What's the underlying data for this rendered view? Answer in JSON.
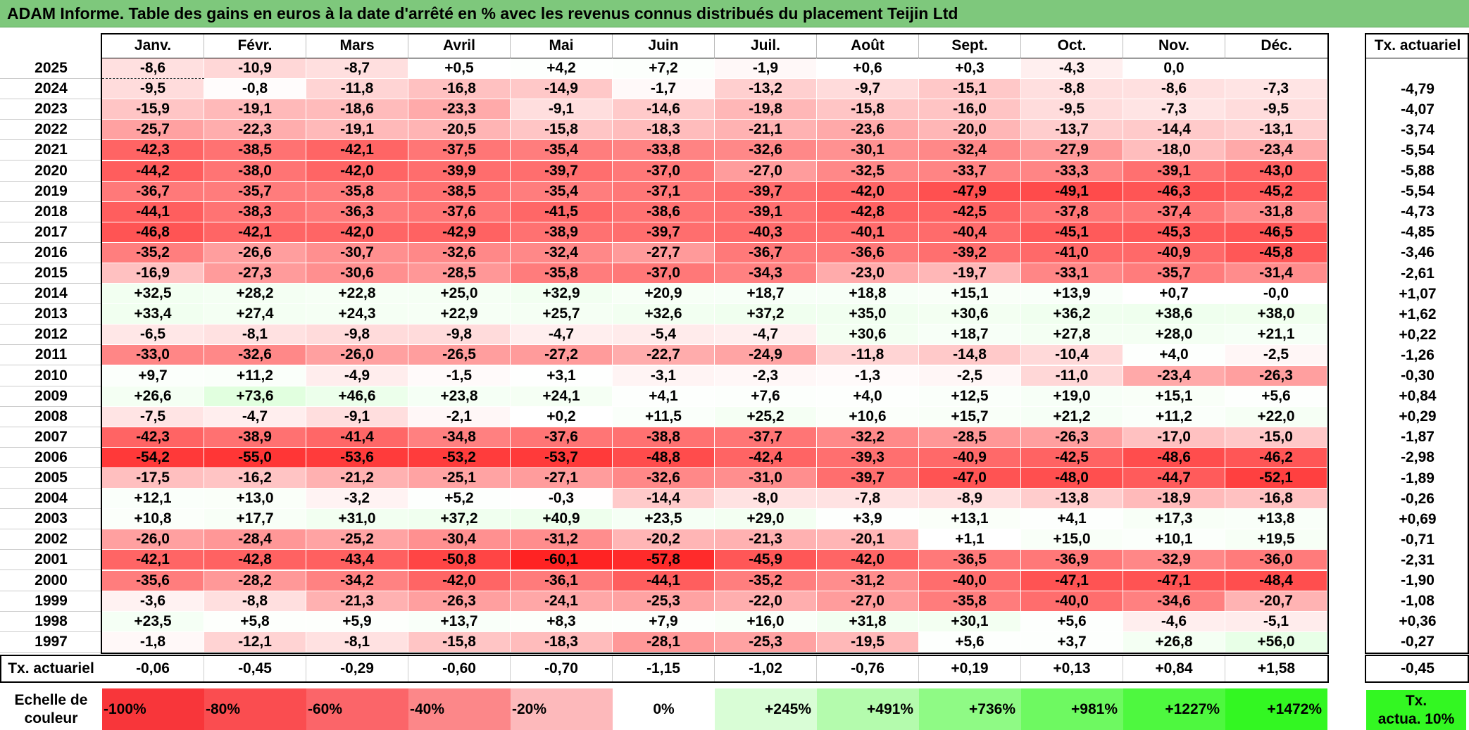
{
  "title": "ADAM Informe. Table des gains en euros à la date d'arrêté en % avec les revenus connus distribués du placement Teijin Ltd",
  "months": [
    "Janv.",
    "Févr.",
    "Mars",
    "Avril",
    "Mai",
    "Juin",
    "Juil.",
    "Août",
    "Sept.",
    "Oct.",
    "Nov.",
    "Déc."
  ],
  "rate_header": "Tx. actuariel",
  "rows": [
    {
      "year": "2025",
      "values": [
        "-8,6",
        "-10,9",
        "-8,7",
        "+0,5",
        "+4,2",
        "+7,2",
        "-1,9",
        "+0,6",
        "+0,3",
        "-4,3",
        "0,0",
        ""
      ],
      "rate": ""
    },
    {
      "year": "2024",
      "values": [
        "-9,5",
        "-0,8",
        "-11,8",
        "-16,8",
        "-14,9",
        "-1,7",
        "-13,2",
        "-9,7",
        "-15,1",
        "-8,8",
        "-8,6",
        "-7,3"
      ],
      "rate": "-4,79"
    },
    {
      "year": "2023",
      "values": [
        "-15,9",
        "-19,1",
        "-18,6",
        "-23,3",
        "-9,1",
        "-14,6",
        "-19,8",
        "-15,8",
        "-16,0",
        "-9,5",
        "-7,3",
        "-9,5"
      ],
      "rate": "-4,07"
    },
    {
      "year": "2022",
      "values": [
        "-25,7",
        "-22,3",
        "-19,1",
        "-20,5",
        "-15,8",
        "-18,3",
        "-21,1",
        "-23,6",
        "-20,0",
        "-13,7",
        "-14,4",
        "-13,1"
      ],
      "rate": "-3,74"
    },
    {
      "year": "2021",
      "values": [
        "-42,3",
        "-38,5",
        "-42,1",
        "-37,5",
        "-35,4",
        "-33,8",
        "-32,6",
        "-30,1",
        "-32,4",
        "-27,9",
        "-18,0",
        "-23,4"
      ],
      "rate": "-5,54"
    },
    {
      "year": "2020",
      "values": [
        "-44,2",
        "-38,0",
        "-42,0",
        "-39,9",
        "-39,7",
        "-37,0",
        "-27,0",
        "-32,5",
        "-33,7",
        "-33,3",
        "-39,1",
        "-43,0"
      ],
      "rate": "-5,88"
    },
    {
      "year": "2019",
      "values": [
        "-36,7",
        "-35,7",
        "-35,8",
        "-38,5",
        "-35,4",
        "-37,1",
        "-39,7",
        "-42,0",
        "-47,9",
        "-49,1",
        "-46,3",
        "-45,2"
      ],
      "rate": "-5,54"
    },
    {
      "year": "2018",
      "values": [
        "-44,1",
        "-38,3",
        "-36,3",
        "-37,6",
        "-41,5",
        "-38,6",
        "-39,1",
        "-42,8",
        "-42,5",
        "-37,8",
        "-37,4",
        "-31,8"
      ],
      "rate": "-4,73"
    },
    {
      "year": "2017",
      "values": [
        "-46,8",
        "-42,1",
        "-42,0",
        "-42,9",
        "-38,9",
        "-39,7",
        "-40,3",
        "-40,1",
        "-40,4",
        "-45,1",
        "-45,3",
        "-46,5"
      ],
      "rate": "-4,85"
    },
    {
      "year": "2016",
      "values": [
        "-35,2",
        "-26,6",
        "-30,7",
        "-32,6",
        "-32,4",
        "-27,7",
        "-36,7",
        "-36,6",
        "-39,2",
        "-41,0",
        "-40,9",
        "-45,8"
      ],
      "rate": "-3,46"
    },
    {
      "year": "2015",
      "values": [
        "-16,9",
        "-27,3",
        "-30,6",
        "-28,5",
        "-35,8",
        "-37,0",
        "-34,3",
        "-23,0",
        "-19,7",
        "-33,1",
        "-35,7",
        "-31,4"
      ],
      "rate": "-2,61"
    },
    {
      "year": "2014",
      "values": [
        "+32,5",
        "+28,2",
        "+22,8",
        "+25,0",
        "+32,9",
        "+20,9",
        "+18,7",
        "+18,8",
        "+15,1",
        "+13,9",
        "+0,7",
        "-0,0"
      ],
      "rate": "+1,07"
    },
    {
      "year": "2013",
      "values": [
        "+33,4",
        "+27,4",
        "+24,3",
        "+22,9",
        "+25,7",
        "+32,6",
        "+37,2",
        "+35,0",
        "+30,6",
        "+36,2",
        "+38,6",
        "+38,0"
      ],
      "rate": "+1,62"
    },
    {
      "year": "2012",
      "values": [
        "-6,5",
        "-8,1",
        "-9,8",
        "-9,8",
        "-4,7",
        "-5,4",
        "-4,7",
        "+30,6",
        "+18,7",
        "+27,8",
        "+28,0",
        "+21,1"
      ],
      "rate": "+0,22"
    },
    {
      "year": "2011",
      "values": [
        "-33,0",
        "-32,6",
        "-26,0",
        "-26,5",
        "-27,2",
        "-22,7",
        "-24,9",
        "-11,8",
        "-14,8",
        "-10,4",
        "+4,0",
        "-2,5"
      ],
      "rate": "-1,26"
    },
    {
      "year": "2010",
      "values": [
        "+9,7",
        "+11,2",
        "-4,9",
        "-1,5",
        "+3,1",
        "-3,1",
        "-2,3",
        "-1,3",
        "-2,5",
        "-11,0",
        "-23,4",
        "-26,3"
      ],
      "rate": "-0,30"
    },
    {
      "year": "2009",
      "values": [
        "+26,6",
        "+73,6",
        "+46,6",
        "+23,8",
        "+24,1",
        "+4,1",
        "+7,6",
        "+4,0",
        "+12,5",
        "+19,0",
        "+15,1",
        "+5,6"
      ],
      "rate": "+0,84"
    },
    {
      "year": "2008",
      "values": [
        "-7,5",
        "-4,7",
        "-9,1",
        "-2,1",
        "+0,2",
        "+11,5",
        "+25,2",
        "+10,6",
        "+15,7",
        "+21,2",
        "+11,2",
        "+22,0"
      ],
      "rate": "+0,29"
    },
    {
      "year": "2007",
      "values": [
        "-42,3",
        "-38,9",
        "-41,4",
        "-34,8",
        "-37,6",
        "-38,8",
        "-37,7",
        "-32,2",
        "-28,5",
        "-26,3",
        "-17,0",
        "-15,0"
      ],
      "rate": "-1,87"
    },
    {
      "year": "2006",
      "values": [
        "-54,2",
        "-55,0",
        "-53,6",
        "-53,2",
        "-53,7",
        "-48,8",
        "-42,4",
        "-39,3",
        "-40,9",
        "-42,5",
        "-48,6",
        "-46,2"
      ],
      "rate": "-2,98"
    },
    {
      "year": "2005",
      "values": [
        "-17,5",
        "-16,2",
        "-21,2",
        "-25,1",
        "-27,1",
        "-32,6",
        "-31,0",
        "-39,7",
        "-47,0",
        "-48,0",
        "-44,7",
        "-52,1"
      ],
      "rate": "-1,89"
    },
    {
      "year": "2004",
      "values": [
        "+12,1",
        "+13,0",
        "-3,2",
        "+5,2",
        "-0,3",
        "-14,4",
        "-8,0",
        "-7,8",
        "-8,9",
        "-13,8",
        "-18,9",
        "-16,8"
      ],
      "rate": "-0,26"
    },
    {
      "year": "2003",
      "values": [
        "+10,8",
        "+17,7",
        "+31,0",
        "+37,2",
        "+40,9",
        "+23,5",
        "+29,0",
        "+3,9",
        "+13,1",
        "+4,1",
        "+17,3",
        "+13,8"
      ],
      "rate": "+0,69"
    },
    {
      "year": "2002",
      "values": [
        "-26,0",
        "-28,4",
        "-25,2",
        "-30,4",
        "-31,2",
        "-20,2",
        "-21,3",
        "-20,1",
        "+1,1",
        "+15,0",
        "+10,1",
        "+19,5"
      ],
      "rate": "-0,71"
    },
    {
      "year": "2001",
      "values": [
        "-42,1",
        "-42,8",
        "-43,4",
        "-50,8",
        "-60,1",
        "-57,8",
        "-45,9",
        "-42,0",
        "-36,5",
        "-36,9",
        "-32,9",
        "-36,0"
      ],
      "rate": "-2,31"
    },
    {
      "year": "2000",
      "values": [
        "-35,6",
        "-28,2",
        "-34,2",
        "-42,0",
        "-36,1",
        "-44,1",
        "-35,2",
        "-31,2",
        "-40,0",
        "-47,1",
        "-47,1",
        "-48,4"
      ],
      "rate": "-1,90"
    },
    {
      "year": "1999",
      "values": [
        "-3,6",
        "-8,8",
        "-21,3",
        "-26,3",
        "-24,1",
        "-25,3",
        "-22,0",
        "-27,0",
        "-35,8",
        "-40,0",
        "-34,6",
        "-20,7"
      ],
      "rate": "-1,08"
    },
    {
      "year": "1998",
      "values": [
        "+23,5",
        "+5,8",
        "+5,9",
        "+13,7",
        "+8,3",
        "+7,9",
        "+16,0",
        "+31,8",
        "+30,1",
        "+5,6",
        "-4,6",
        "-5,1"
      ],
      "rate": "+0,36"
    },
    {
      "year": "1997",
      "values": [
        "-1,8",
        "-12,1",
        "-8,1",
        "-15,8",
        "-18,3",
        "-28,1",
        "-25,3",
        "-19,5",
        "+5,6",
        "+3,7",
        "+26,8",
        "+56,0"
      ],
      "rate": "-0,27"
    }
  ],
  "summary": {
    "label": "Tx. actuariel",
    "values": [
      "-0,06",
      "-0,45",
      "-0,29",
      "-0,60",
      "-0,70",
      "-1,15",
      "-1,02",
      "-0,76",
      "+0,19",
      "+0,13",
      "+0,84",
      "+1,58"
    ],
    "rate": "-0,45"
  },
  "scale": {
    "label_line1": "Echelle de",
    "label_line2": "couleur",
    "steps": [
      "-100%",
      "-80%",
      "-60%",
      "-40%",
      "-20%",
      "0%",
      "+245%",
      "+491%",
      "+736%",
      "+981%",
      "+1227%",
      "+1472%"
    ],
    "step_colors": [
      "#f8363a",
      "#fa4d50",
      "#fb6569",
      "#fc8789",
      "#fdb9bb",
      "#ffffff",
      "#d9fdd6",
      "#b4fbad",
      "#8ffa85",
      "#6ef961",
      "#4ef83f",
      "#33f722"
    ],
    "rate_label_line1": "Tx.",
    "rate_label_line2": "actua. 10%",
    "rate_color": "#33f722"
  },
  "colors": {
    "title_bg": "#7ec87c",
    "negative_max": "#ff1f1f",
    "positive_max": "#2cf21c"
  }
}
